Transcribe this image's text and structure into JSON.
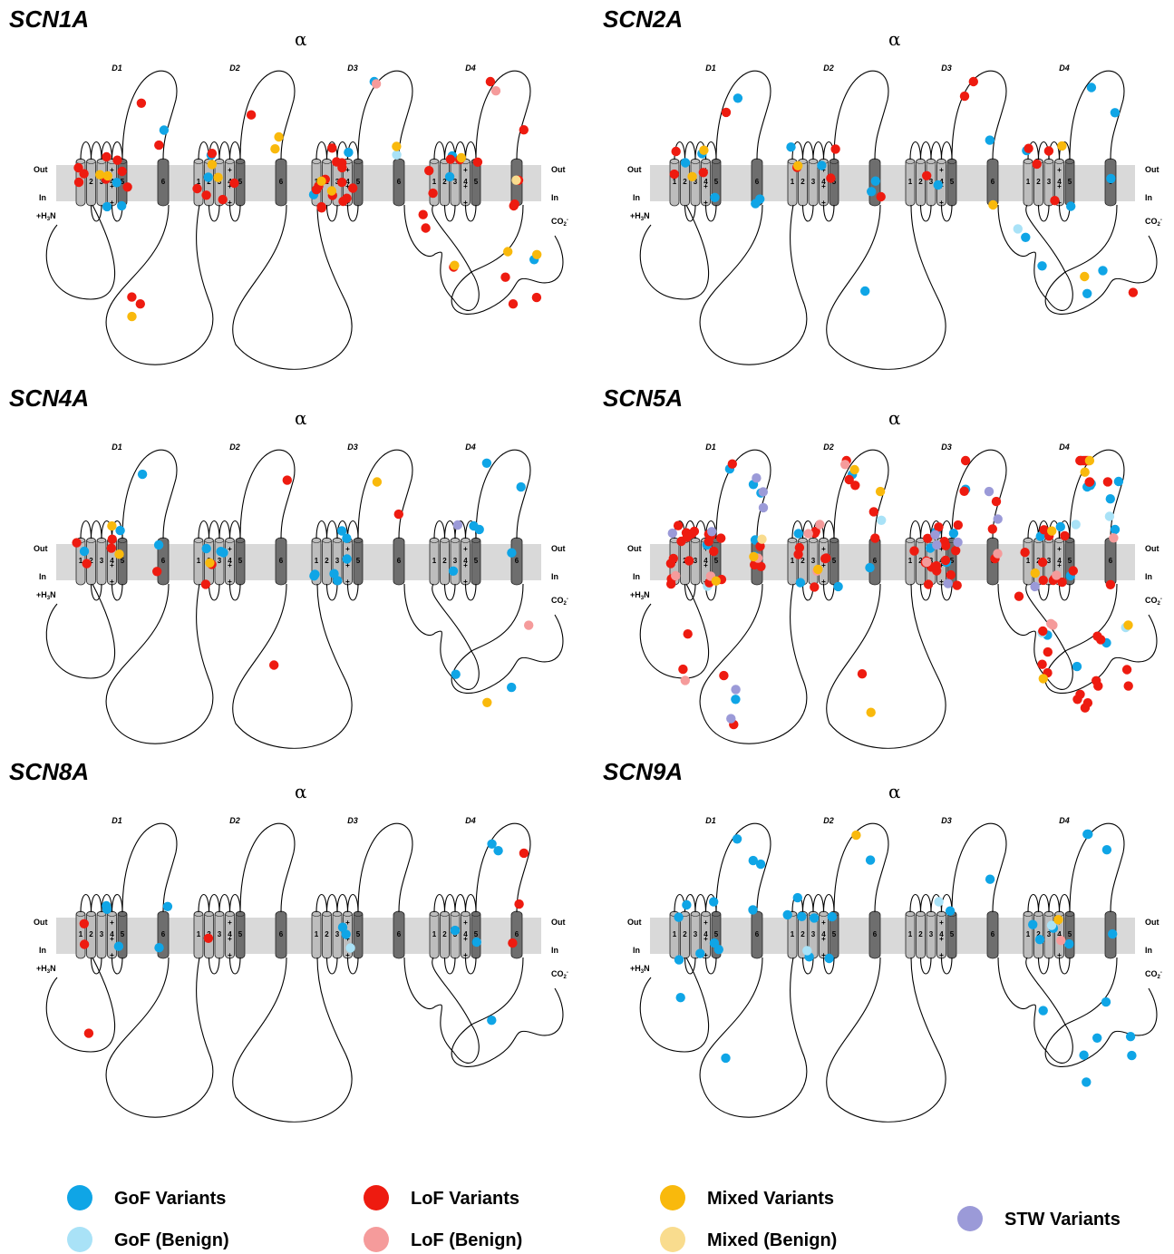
{
  "panels": [
    {
      "gene": "SCN1A",
      "alpha": "α",
      "domains": [
        "D1",
        "D2",
        "D3",
        "D4"
      ],
      "out_label": "Out",
      "in_label": "In",
      "n_term": "+H3N",
      "c_term": "CO2-",
      "variant_counts": {
        "gof": 12,
        "gof_benign": 1,
        "lof": 48,
        "lof_benign": 2,
        "mixed": 14,
        "mixed_benign": 1,
        "stw": 0
      }
    },
    {
      "gene": "SCN2A",
      "alpha": "α",
      "domains": [
        "D1",
        "D2",
        "D3",
        "D4"
      ],
      "out_label": "Out",
      "in_label": "In",
      "n_term": "+H3N",
      "c_term": "CO2-",
      "variant_counts": {
        "gof": 22,
        "gof_benign": 1,
        "lof": 16,
        "lof_benign": 0,
        "mixed": 6,
        "mixed_benign": 0,
        "stw": 0
      }
    },
    {
      "gene": "SCN4A",
      "alpha": "α",
      "domains": [
        "D1",
        "D2",
        "D3",
        "D4"
      ],
      "out_label": "Out",
      "in_label": "In",
      "n_term": "+H3N",
      "c_term": "CO2-",
      "variant_counts": {
        "gof": 22,
        "gof_benign": 0,
        "lof": 10,
        "lof_benign": 1,
        "mixed": 5,
        "mixed_benign": 0,
        "stw": 1
      }
    },
    {
      "gene": "SCN5A",
      "alpha": "α",
      "domains": [
        "D1",
        "D2",
        "D3",
        "D4"
      ],
      "out_label": "Out",
      "in_label": "In",
      "n_term": "+H3N",
      "c_term": "CO2-",
      "variant_counts": {
        "gof": 30,
        "gof_benign": 6,
        "lof": 95,
        "lof_benign": 14,
        "mixed": 12,
        "mixed_benign": 1,
        "stw": 14
      }
    },
    {
      "gene": "SCN8A",
      "alpha": "α",
      "domains": [
        "D1",
        "D2",
        "D3",
        "D4"
      ],
      "out_label": "Out",
      "in_label": "In",
      "n_term": "+H3N",
      "c_term": "CO2-",
      "variant_counts": {
        "gof": 12,
        "gof_benign": 1,
        "lof": 7,
        "lof_benign": 0,
        "mixed": 0,
        "mixed_benign": 0,
        "stw": 0
      }
    },
    {
      "gene": "SCN9A",
      "alpha": "α",
      "domains": [
        "D1",
        "D2",
        "D3",
        "D4"
      ],
      "out_label": "Out",
      "in_label": "In",
      "n_term": "+H3N",
      "c_term": "CO2-",
      "variant_counts": {
        "gof": 38,
        "gof_benign": 3,
        "lof": 0,
        "lof_benign": 1,
        "mixed": 2,
        "mixed_benign": 0,
        "stw": 0
      }
    }
  ],
  "legend": [
    {
      "key": "gof",
      "label": "GoF Variants",
      "color": "#0fa5e6"
    },
    {
      "key": "gof_benign",
      "label": "GoF (Benign)",
      "color": "#a9e2f7"
    },
    {
      "key": "lof",
      "label": "LoF Variants",
      "color": "#ee1b10"
    },
    {
      "key": "lof_benign",
      "label": "LoF (Benign)",
      "color": "#f59b9b"
    },
    {
      "key": "mixed",
      "label": "Mixed Variants",
      "color": "#f9b90c"
    },
    {
      "key": "mixed_benign",
      "label": "Mixed (Benign)",
      "color": "#f9dc8e"
    },
    {
      "key": "stw",
      "label": "STW Variants",
      "color": "#9b9ad8"
    }
  ],
  "colors": {
    "membrane": "#d9d9d9",
    "segment_light": "#bdbdbd",
    "segment_dark": "#6e6e6e"
  }
}
